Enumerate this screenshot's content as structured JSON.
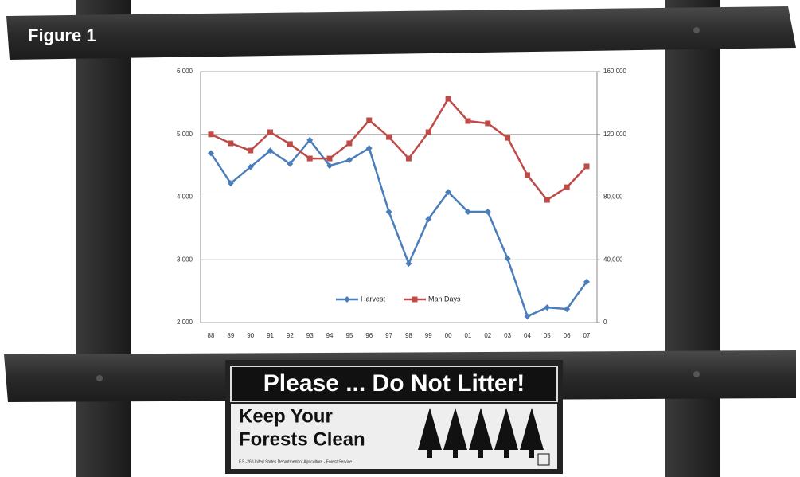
{
  "figure_label": "Figure 1",
  "sign": {
    "headline": "Please ... Do Not Litter!",
    "line1": "Keep Your",
    "line2": "Forests Clean",
    "fine_print": "F.S.-26 United States Department of Agriculture - Forest Service"
  },
  "chart_data": {
    "type": "line",
    "categories": [
      "88",
      "89",
      "90",
      "91",
      "92",
      "93",
      "94",
      "95",
      "96",
      "97",
      "98",
      "99",
      "00",
      "01",
      "02",
      "03",
      "04",
      "05",
      "06",
      "07"
    ],
    "series": [
      {
        "name": "Harvest",
        "color": "#4a7ebb",
        "values": [
          4700,
          4220,
          4480,
          4740,
          4530,
          4910,
          4500,
          4590,
          4780,
          3765,
          2940,
          3650,
          4080,
          3765,
          3765,
          3020,
          2100,
          2240,
          2215,
          2650
        ]
      },
      {
        "name": "Man Days",
        "color": "#be4b48",
        "axis": "y2",
        "values": [
          120000,
          114300,
          109700,
          121400,
          113800,
          104600,
          104600,
          114300,
          129000,
          118300,
          104600,
          121400,
          142700,
          128500,
          127000,
          117800,
          94000,
          78200,
          86300,
          99600
        ]
      }
    ],
    "ylim": [
      2000,
      6000
    ],
    "yticks": [
      {
        "value": 2000,
        "label": "2,000"
      },
      {
        "value": 3000,
        "label": "3,000"
      },
      {
        "value": 4000,
        "label": "4,000"
      },
      {
        "value": 5000,
        "label": "5,000"
      },
      {
        "value": 6000,
        "label": "6,000"
      }
    ],
    "y2lim": [
      0,
      160000
    ],
    "y2ticks": [
      0,
      {
        "value": 40000,
        "label": "40,000"
      },
      {
        "value": 80000,
        "label": "80,000"
      },
      {
        "value": 120000,
        "label": "120,000"
      },
      {
        "value": 160000,
        "label": "160,000"
      }
    ],
    "grid": true
  }
}
